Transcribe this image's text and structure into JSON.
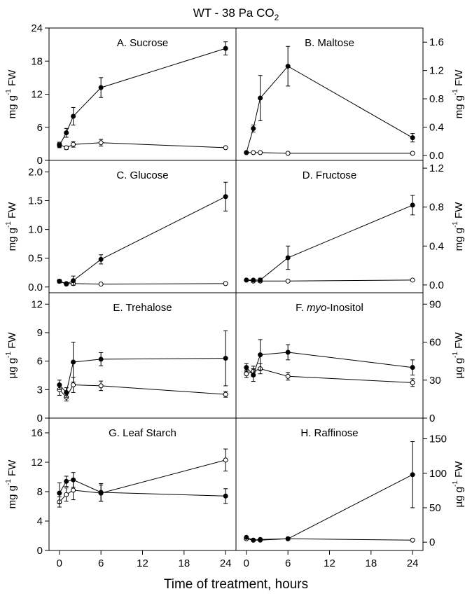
{
  "figure": {
    "title_main": "WT - 38 Pa CO",
    "title_sub": "2",
    "xlabel": "Time of treatment, hours",
    "xticks": [
      "0",
      "6",
      "12",
      "18",
      "24"
    ]
  },
  "chart_data": [
    {
      "type": "line",
      "panel_label": "A. Sucrose",
      "ylabel_pre": "mg g",
      "ylabel_sup": "-1",
      "ylabel_post": " FW",
      "ylim": [
        0,
        24
      ],
      "yticks": [
        0,
        6,
        12,
        18,
        24
      ],
      "ytick_labels": [
        "0",
        "6",
        "12",
        "18",
        "24"
      ],
      "xlim": [
        -1.5,
        25.5
      ],
      "series": [
        {
          "filled": true,
          "x": [
            0,
            1,
            2,
            6,
            24
          ],
          "y": [
            2.7,
            5.0,
            8.0,
            13.2,
            20.3
          ],
          "err": [
            0.4,
            0.8,
            1.6,
            1.8,
            1.2
          ]
        },
        {
          "filled": false,
          "x": [
            0,
            1,
            2,
            6,
            24
          ],
          "y": [
            2.9,
            2.3,
            2.9,
            3.2,
            2.3
          ],
          "err": [
            0.4,
            0.3,
            0.5,
            0.6,
            0.2
          ]
        }
      ]
    },
    {
      "type": "line",
      "panel_label": "B. Maltose",
      "ylabel_pre": "mg g",
      "ylabel_sup": "-1",
      "ylabel_post": " FW",
      "ylim": [
        -0.07,
        1.8
      ],
      "yticks": [
        0,
        0.4,
        0.8,
        1.2,
        1.6
      ],
      "ytick_labels": [
        "0.0",
        "0.4",
        "0.8",
        "1.2",
        "1.6"
      ],
      "xlim": [
        -1.5,
        25.5
      ],
      "series": [
        {
          "filled": true,
          "x": [
            0,
            1,
            2,
            6,
            24
          ],
          "y": [
            0.04,
            0.38,
            0.81,
            1.26,
            0.25
          ],
          "err": [
            0.01,
            0.05,
            0.32,
            0.28,
            0.06
          ]
        },
        {
          "filled": false,
          "x": [
            0,
            1,
            2,
            6,
            24
          ],
          "y": [
            0.04,
            0.04,
            0.04,
            0.03,
            0.03
          ],
          "err": [
            0.01,
            0.01,
            0.01,
            0.01,
            0.01
          ]
        }
      ]
    },
    {
      "type": "line",
      "panel_label": "C. Glucose",
      "ylabel_pre": "mg g",
      "ylabel_sup": "-1",
      "ylabel_post": " FW",
      "ylim": [
        -0.1,
        2.2
      ],
      "yticks": [
        0,
        0.5,
        1.0,
        1.5,
        2.0
      ],
      "ytick_labels": [
        "0.0",
        "0.5",
        "1.0",
        "1.5",
        "2.0"
      ],
      "xlim": [
        -1.5,
        25.5
      ],
      "series": [
        {
          "filled": true,
          "x": [
            0,
            1,
            2,
            6,
            24
          ],
          "y": [
            0.1,
            0.05,
            0.11,
            0.48,
            1.57
          ],
          "err": [
            0.03,
            0.02,
            0.08,
            0.08,
            0.25
          ]
        },
        {
          "filled": false,
          "x": [
            0,
            1,
            2,
            6,
            24
          ],
          "y": [
            0.1,
            0.06,
            0.06,
            0.05,
            0.06
          ],
          "err": [
            0.02,
            0.01,
            0.02,
            0.01,
            0.01
          ]
        }
      ]
    },
    {
      "type": "line",
      "panel_label": "D. Fructose",
      "ylabel_pre": "mg g",
      "ylabel_sup": "-1",
      "ylabel_post": " FW",
      "ylim": [
        -0.08,
        1.28
      ],
      "yticks": [
        0,
        0.4,
        0.8,
        1.2
      ],
      "ytick_labels": [
        "0.0",
        "0.4",
        "0.8",
        "1.2"
      ],
      "xlim": [
        -1.5,
        25.5
      ],
      "series": [
        {
          "filled": true,
          "x": [
            0,
            1,
            2,
            6,
            24
          ],
          "y": [
            0.05,
            0.05,
            0.05,
            0.28,
            0.82
          ],
          "err": [
            0.01,
            0.01,
            0.02,
            0.12,
            0.1
          ]
        },
        {
          "filled": false,
          "x": [
            0,
            1,
            2,
            6,
            24
          ],
          "y": [
            0.05,
            0.04,
            0.04,
            0.04,
            0.05
          ],
          "err": [
            0.01,
            0.01,
            0.01,
            0.01,
            0.01
          ]
        }
      ]
    },
    {
      "type": "line",
      "panel_label": "E. Trehalose",
      "ylabel_pre": "µg g",
      "ylabel_sup": "-1",
      "ylabel_post": " FW",
      "ylim": [
        0,
        13.2
      ],
      "yticks": [
        0,
        3,
        6,
        9,
        12
      ],
      "ytick_labels": [
        "0",
        "3",
        "6",
        "9",
        "12"
      ],
      "xlim": [
        -1.5,
        25.5
      ],
      "series": [
        {
          "filled": true,
          "x": [
            0,
            1,
            2,
            6,
            24
          ],
          "y": [
            3.5,
            2.7,
            5.9,
            6.2,
            6.3
          ],
          "err": [
            0.5,
            0.5,
            2.1,
            0.7,
            2.9
          ]
        },
        {
          "filled": false,
          "x": [
            0,
            1,
            2,
            6,
            24
          ],
          "y": [
            3.0,
            2.2,
            3.5,
            3.4,
            2.5
          ],
          "err": [
            0.6,
            0.4,
            0.8,
            0.5,
            0.3
          ]
        }
      ]
    },
    {
      "type": "line",
      "panel_label": "myo-Inositol",
      "panel_prefix": "F. ",
      "panel_italic": "myo",
      "panel_suffix": "-Inositol",
      "ylabel_pre": "µg g",
      "ylabel_sup": "-1",
      "ylabel_post": " FW",
      "ylim": [
        0,
        99
      ],
      "yticks": [
        0,
        30,
        60,
        90
      ],
      "ytick_labels": [
        "0",
        "30",
        "60",
        "90"
      ],
      "xlim": [
        -1.5,
        25.5
      ],
      "series": [
        {
          "filled": true,
          "x": [
            0,
            1,
            2,
            6,
            24
          ],
          "y": [
            40,
            34,
            50,
            52,
            40
          ],
          "err": [
            3,
            5,
            12,
            6,
            6
          ]
        },
        {
          "filled": false,
          "x": [
            0,
            1,
            2,
            6,
            24
          ],
          "y": [
            35,
            37,
            39,
            33,
            28
          ],
          "err": [
            3,
            4,
            4,
            3,
            3
          ]
        }
      ]
    },
    {
      "type": "line",
      "panel_label": "G. Leaf Starch",
      "ylabel_pre": "mg g",
      "ylabel_sup": "-1",
      "ylabel_post": " FW",
      "ylim": [
        0,
        18
      ],
      "yticks": [
        0,
        4,
        8,
        12,
        16
      ],
      "ytick_labels": [
        "0",
        "4",
        "8",
        "12",
        "16"
      ],
      "xlim": [
        -1.5,
        25.5
      ],
      "series": [
        {
          "filled": true,
          "x": [
            0,
            1,
            2,
            6,
            24
          ],
          "y": [
            7.8,
            9.4,
            9.6,
            7.9,
            7.4
          ],
          "err": [
            1.4,
            0.7,
            1.0,
            1.2,
            1.0
          ]
        },
        {
          "filled": false,
          "x": [
            0,
            1,
            2,
            6,
            24
          ],
          "y": [
            6.6,
            7.6,
            8.2,
            7.8,
            12.3
          ],
          "err": [
            0.7,
            0.9,
            1.3,
            1.1,
            1.5
          ]
        }
      ]
    },
    {
      "type": "line",
      "panel_label": "H. Raffinose",
      "ylabel_pre": "µg g",
      "ylabel_sup": "-1",
      "ylabel_post": " FW",
      "ylim": [
        -12,
        180
      ],
      "yticks": [
        0,
        50,
        100,
        150
      ],
      "ytick_labels": [
        "0",
        "50",
        "100",
        "150"
      ],
      "xlim": [
        -1.5,
        25.5
      ],
      "series": [
        {
          "filled": true,
          "x": [
            0,
            1,
            2,
            6,
            24
          ],
          "y": [
            7,
            3,
            4,
            5,
            98
          ],
          "err": [
            2,
            1,
            1,
            1,
            48
          ]
        },
        {
          "filled": false,
          "x": [
            0,
            1,
            2,
            6,
            24
          ],
          "y": [
            5,
            3,
            3,
            5,
            3
          ],
          "err": [
            1,
            1,
            1,
            1,
            1
          ]
        }
      ]
    }
  ]
}
